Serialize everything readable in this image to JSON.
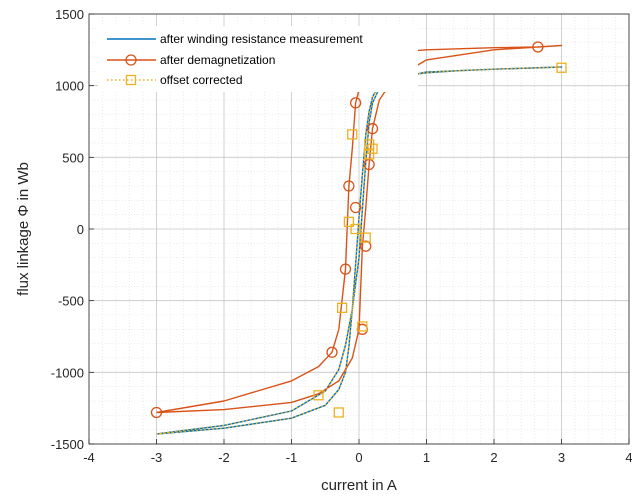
{
  "chart_data": {
    "type": "line",
    "title": "",
    "xlabel": "current in A",
    "ylabel": "flux linkage Φ in Wb",
    "xlim": [
      -4,
      4
    ],
    "ylim": [
      -1500,
      1500
    ],
    "x_ticks": [
      -4,
      -3,
      -2,
      -1,
      0,
      1,
      2,
      3,
      4
    ],
    "y_ticks": [
      -1500,
      -1000,
      -500,
      0,
      500,
      1000,
      1500
    ],
    "x_tick_labels": [
      "-4",
      "-3",
      "-2",
      "-1",
      "0",
      "1",
      "2",
      "3",
      "4"
    ],
    "y_tick_labels": [
      "-1500",
      "-1000",
      "-500",
      "0",
      "500",
      "1000",
      "1500"
    ],
    "grid": true,
    "minor_grid": true,
    "legend_position": "top-left",
    "series": [
      {
        "name": "after winding resistance measurement",
        "color": "#0072bd",
        "line": "solid",
        "marker": "none",
        "x": [
          -3.0,
          -2.0,
          -1.0,
          -0.5,
          -0.3,
          -0.2,
          -0.15,
          -0.1,
          -0.05,
          0.0,
          0.05,
          0.1,
          0.15,
          0.2,
          0.3,
          0.5,
          1.0,
          1.5,
          2.0,
          3.0,
          2.0,
          1.0,
          0.5,
          0.3,
          0.2,
          0.15,
          0.1,
          0.05,
          0.0,
          -0.1,
          -0.2,
          -0.3,
          -0.5,
          -1.0,
          -2.0,
          -3.0
        ],
        "y": [
          -1430,
          -1390,
          -1320,
          -1230,
          -1120,
          -1000,
          -820,
          -560,
          -250,
          80,
          380,
          660,
          820,
          920,
          1010,
          1060,
          1090,
          1105,
          1115,
          1130,
          1115,
          1095,
          1050,
          980,
          880,
          740,
          470,
          140,
          -200,
          -560,
          -810,
          -980,
          -1130,
          -1270,
          -1370,
          -1430
        ]
      },
      {
        "name": "after demagnetization",
        "color": "#d95319",
        "line": "solid",
        "marker": "circle",
        "x": [
          -3.0,
          -2.0,
          -1.0,
          -0.6,
          -0.4,
          -0.3,
          -0.2,
          -0.15,
          -0.1,
          -0.05,
          0.0,
          0.1,
          0.2,
          0.3,
          0.45,
          1.0,
          2.0,
          2.65,
          3.0,
          2.0,
          1.0,
          0.5,
          0.3,
          0.2,
          0.15,
          0.1,
          0.05,
          0.0,
          -0.1,
          -0.3,
          -0.6,
          -1.0,
          -2.0,
          -3.0
        ],
        "y": [
          -1280,
          -1200,
          -1060,
          -960,
          -860,
          -700,
          -280,
          300,
          560,
          880,
          970,
          1060,
          1120,
          1180,
          1230,
          1250,
          1265,
          1270,
          1280,
          1250,
          1180,
          1040,
          900,
          700,
          450,
          150,
          -120,
          -700,
          -900,
          -1060,
          -1150,
          -1210,
          -1260,
          -1280
        ],
        "marker_x": [
          -3.0,
          -0.4,
          -0.2,
          -0.15,
          -0.05,
          0.45,
          2.65,
          0.2,
          0.15,
          -0.05,
          0.1,
          0.05
        ],
        "marker_y": [
          -1280,
          -860,
          -280,
          300,
          880,
          1040,
          1270,
          700,
          450,
          150,
          -120,
          -700
        ]
      },
      {
        "name": "offset corrected",
        "color": "#edb120",
        "line": "dotted",
        "marker": "square",
        "x": [
          -3.0,
          -2.0,
          -1.0,
          -0.5,
          -0.3,
          -0.2,
          -0.15,
          -0.1,
          -0.05,
          0.0,
          0.05,
          0.1,
          0.15,
          0.2,
          0.3,
          0.5,
          1.0,
          1.5,
          2.0,
          3.0,
          2.0,
          1.0,
          0.5,
          0.3,
          0.2,
          0.15,
          0.1,
          0.05,
          0.0,
          -0.1,
          -0.2,
          -0.3,
          -0.5,
          -1.0,
          -2.0,
          -3.0
        ],
        "y": [
          -1430,
          -1390,
          -1320,
          -1230,
          -1120,
          -1000,
          -820,
          -560,
          -250,
          80,
          380,
          660,
          820,
          920,
          1010,
          1060,
          1090,
          1105,
          1115,
          1130,
          1115,
          1095,
          1050,
          980,
          880,
          740,
          470,
          140,
          -200,
          -560,
          -810,
          -980,
          -1130,
          -1270,
          -1370,
          -1430
        ],
        "marker_x": [
          3.0,
          0.2,
          0.15,
          -0.1,
          -0.15,
          -0.25,
          -0.3,
          -0.6,
          0.05,
          0.1,
          0.15,
          -0.05
        ],
        "marker_y": [
          1125,
          560,
          590,
          660,
          50,
          -550,
          -1280,
          -1160,
          -680,
          -60,
          520,
          0
        ]
      }
    ]
  }
}
